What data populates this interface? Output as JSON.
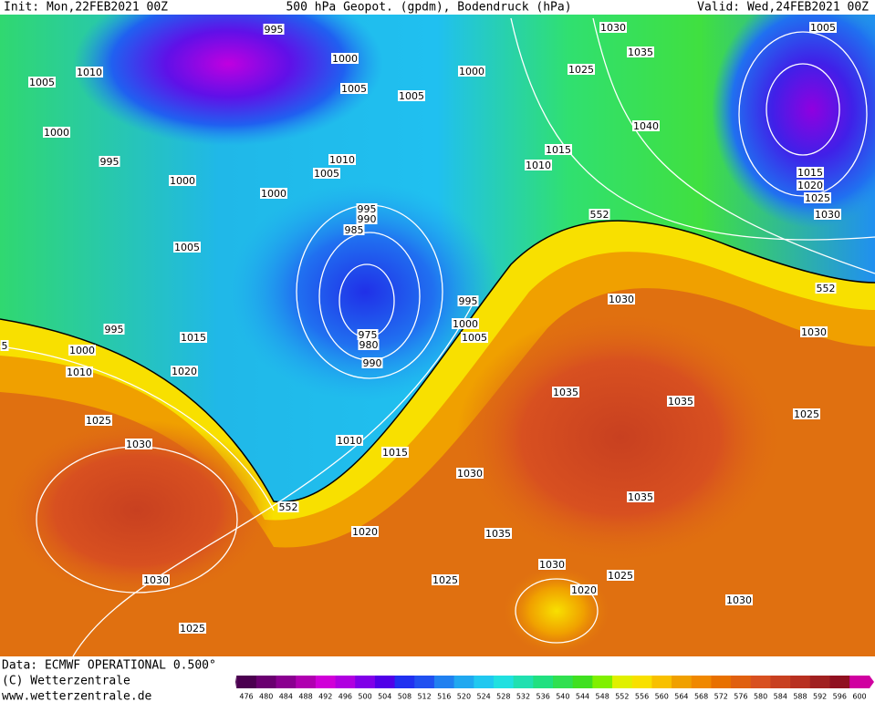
{
  "header": {
    "init": "Init: Mon,22FEB2021 00Z",
    "title": "500 hPa Geopot. (gpdm), Bodendruck (hPa)",
    "valid": "Valid: Wed,24FEB2021 00Z"
  },
  "isobar_labels": [
    995,
    1010,
    1005,
    1000,
    1005,
    1005,
    1000,
    1000,
    995,
    1000,
    1010,
    1005,
    1000,
    995,
    990,
    985,
    1005,
    995,
    1015,
    1000,
    1010,
    1020,
    975,
    980,
    990,
    995,
    1000,
    1005,
    1030,
    1035,
    1025,
    1040,
    1015,
    1010,
    1005,
    1015,
    1020,
    1025,
    1030,
    1030,
    1030,
    1035,
    1035,
    1025,
    1025,
    1030,
    1010,
    1015,
    1030,
    1035,
    1035,
    1020,
    1030,
    1025,
    1020,
    1025,
    1030,
    1030,
    1025,
    552,
    552,
    552,
    5
  ],
  "footer": [
    "Data: ECMWF OPERATIONAL 0.500°",
    "(C) Wetterzentrale",
    "www.wetterzentrale.de"
  ],
  "colorbar": {
    "ticks": [
      476,
      480,
      484,
      488,
      492,
      496,
      500,
      504,
      508,
      512,
      516,
      520,
      524,
      528,
      532,
      536,
      540,
      544,
      548,
      552,
      556,
      560,
      564,
      568,
      572,
      576,
      580,
      584,
      588,
      592,
      596,
      600
    ],
    "colors": [
      "#4b0050",
      "#6a0070",
      "#8a0090",
      "#b000b0",
      "#d000d8",
      "#b000e0",
      "#8000e8",
      "#5000e8",
      "#2030f0",
      "#2050f0",
      "#2080f0",
      "#20a8f0",
      "#20c8f0",
      "#20e0e0",
      "#20e0b0",
      "#20e080",
      "#30e050",
      "#40e020",
      "#80f000",
      "#e0f000",
      "#f8e000",
      "#f8c000",
      "#f0a000",
      "#f08800",
      "#e87000",
      "#e06010",
      "#d85020",
      "#c84020",
      "#b83020",
      "#a02020",
      "#901020",
      "#d000a0"
    ]
  }
}
